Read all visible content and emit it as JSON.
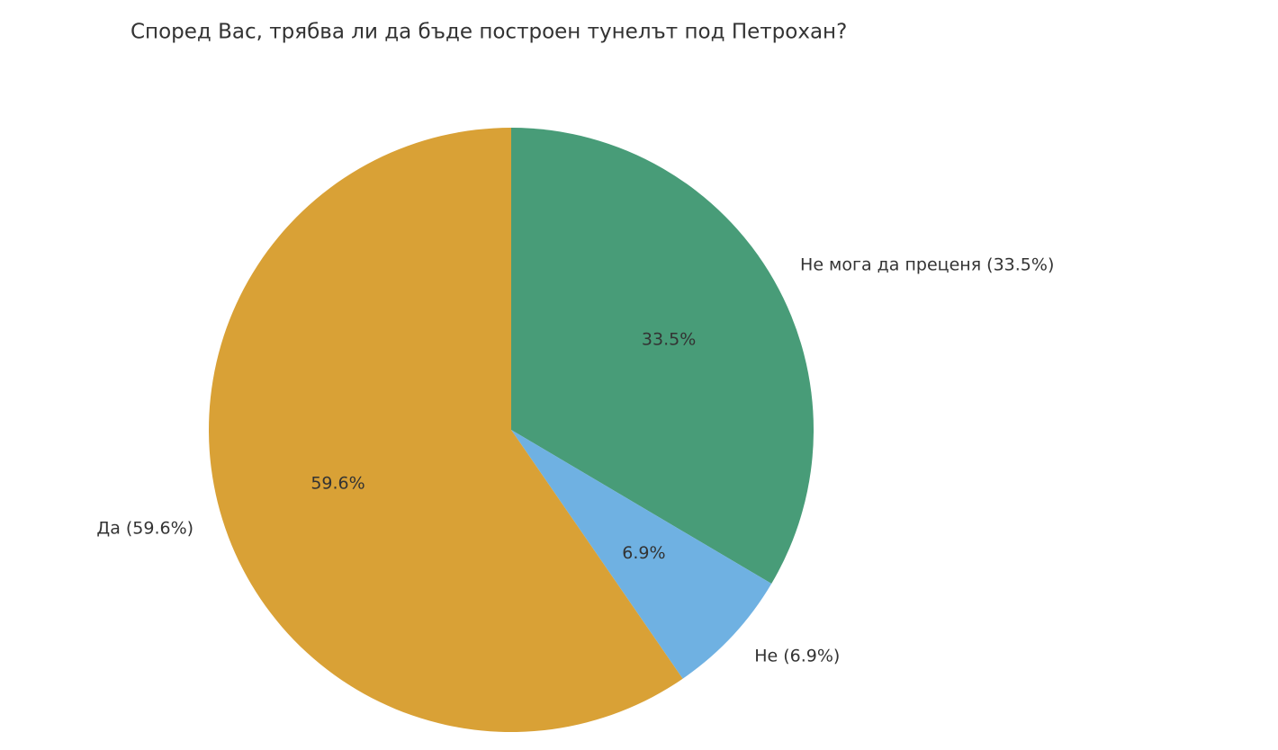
{
  "chart_data": {
    "type": "pie",
    "title": "Според Вас, трябва ли да бъде построен тунелът под Петрохан?",
    "categories": [
      "Не мога да преценя (33.5%)",
      "Не (6.9%)",
      "Да (59.6%)"
    ],
    "values": [
      33.5,
      6.9,
      59.6
    ],
    "value_labels": [
      "33.5%",
      "6.9%",
      "59.6%"
    ],
    "colors": [
      "#489c78",
      "#6fb1e2",
      "#d9a136"
    ]
  }
}
